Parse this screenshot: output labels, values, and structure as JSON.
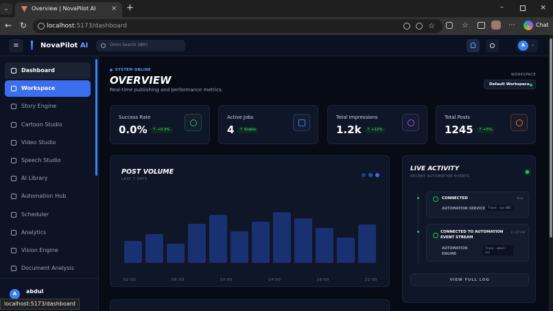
{
  "browser": {
    "tab_title": "Overview | NovaPilot AI",
    "url_host": "localhost",
    "url_path": ":5173/dashboard",
    "chat": "Chat",
    "status_url": "localhost:5173/dashboard"
  },
  "app": {
    "brand": "NovaPilot",
    "brand_suffix": "AI",
    "search_placeholder": "Omni Search (⌘K)",
    "avatar": "A"
  },
  "sidebar": {
    "items": [
      "Dashboard",
      "Workspace",
      "Story Engine",
      "Cartoon Studio",
      "Video Studio",
      "Speech Studio",
      "AI Library",
      "Automation Hub",
      "Scheduler",
      "Analytics",
      "Vision Engine",
      "Document Analysis"
    ]
  },
  "user": {
    "name": "abdul",
    "avatar": "A"
  },
  "header": {
    "status": "SYSTEM ONLINE",
    "title": "OVERVIEW",
    "subtitle": "Real-time publishing and performance metrics.",
    "workspace_label": "WORKSPACE",
    "workspace_name": "Default Workspace"
  },
  "stats": [
    {
      "label": "Success Rate",
      "value": "0.0%",
      "change": "↑ +0.3%"
    },
    {
      "label": "Active Jobs",
      "value": "4",
      "change": "↑ Stable"
    },
    {
      "label": "Total Impressions",
      "value": "1.2k",
      "change": "↑ +12%"
    },
    {
      "label": "Total Posts",
      "value": "1245",
      "change": "↑ +5%"
    }
  ],
  "post_volume": {
    "title": "POST VOLUME",
    "subtitle": "LAST 7 DAYS",
    "values": [
      32,
      42,
      28,
      57,
      70,
      46,
      60,
      74,
      65,
      51,
      37,
      56
    ],
    "x_labels": [
      "02:00",
      "06:00",
      "10:00",
      "14:00",
      "18:00",
      "22:00"
    ]
  },
  "live_activity": {
    "title": "LIVE ACTIVITY",
    "subtitle": "RECENT AUTOMATION EVENTS",
    "events": [
      {
        "title": "CONNECTED",
        "time": "Now",
        "source": "AUTOMATION SERVICE",
        "trace": "Trace: sys-001"
      },
      {
        "title": "CONNECTED TO AUTOMATION EVENT STREAM",
        "time": "11:47 AM",
        "source": "AUTOMATION ENGINE",
        "trace": "Trace: email-svc"
      }
    ],
    "button": "VIEW FULL LOG"
  }
}
